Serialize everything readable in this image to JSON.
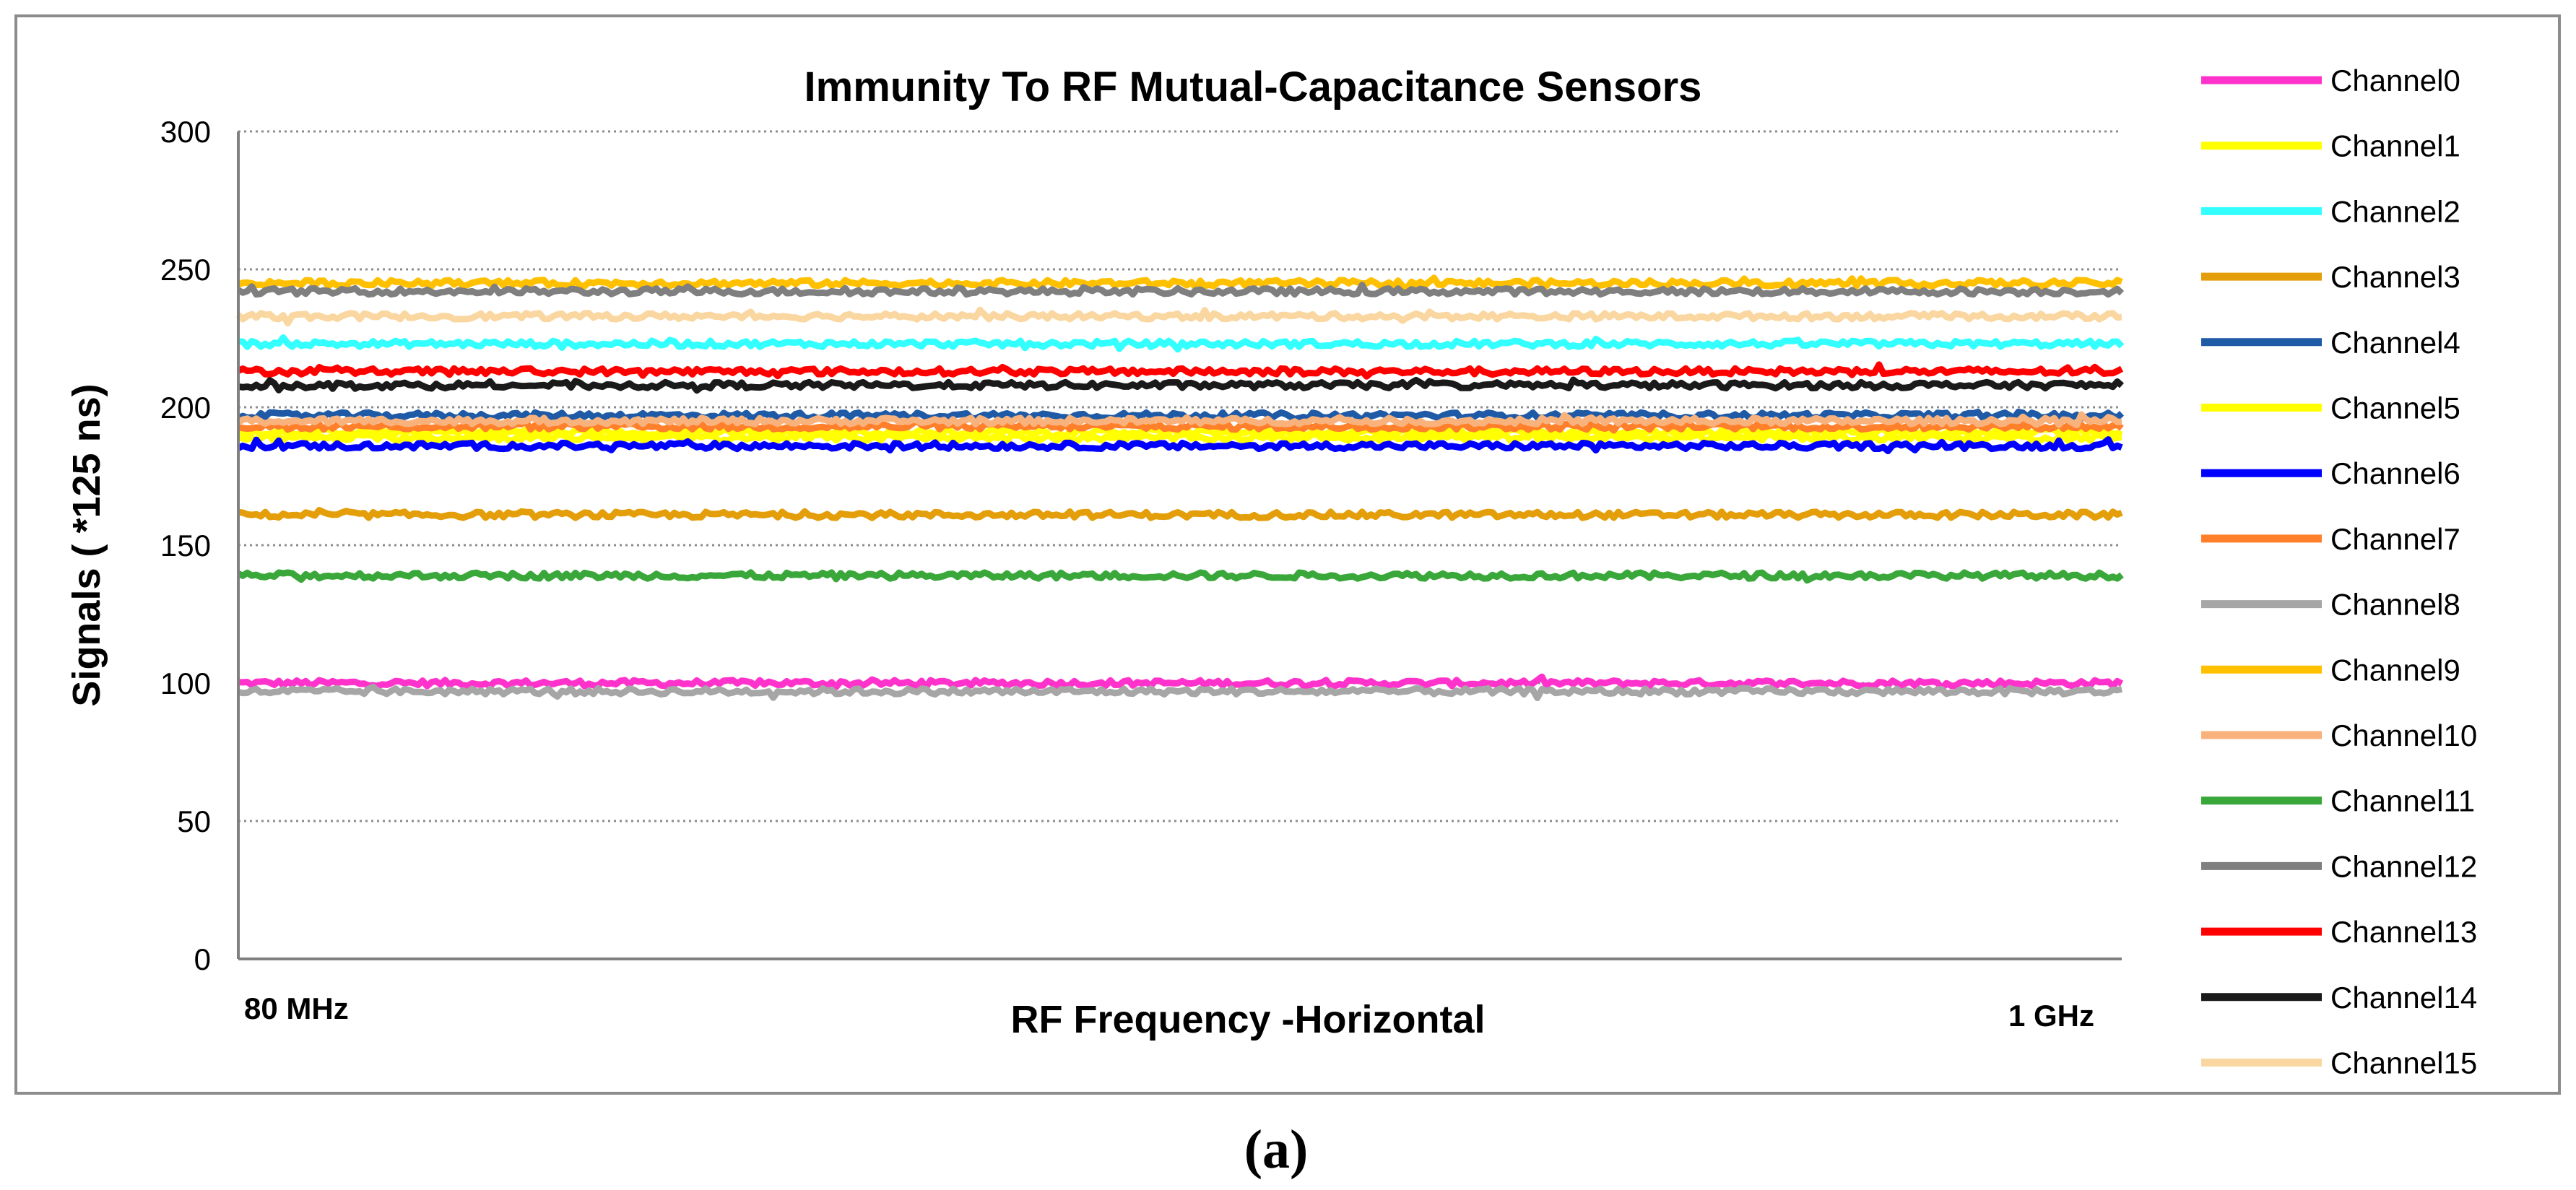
{
  "chart_data": {
    "type": "line",
    "title": "Immunity To RF Mutual-Capacitance Sensors",
    "xlabel": "RF Frequency -Horizontal",
    "ylabel": "Signals ( *125 ns)",
    "x_start_label": "80 MHz",
    "x_end_label": "1 GHz",
    "ylim": [
      0,
      300
    ],
    "yticks": [
      "0",
      "50",
      "100",
      "150",
      "200",
      "250",
      "300"
    ],
    "grid": true,
    "legend_position": "right",
    "caption": "(a)",
    "series": [
      {
        "name": "Channel0",
        "color": "#ff33cc",
        "value": 100
      },
      {
        "name": "Channel1",
        "color": "#ffff00",
        "value": 191
      },
      {
        "name": "Channel2",
        "color": "#33ffff",
        "value": 223
      },
      {
        "name": "Channel3",
        "color": "#e39e09",
        "value": 161
      },
      {
        "name": "Channel4",
        "color": "#1f5aa6",
        "value": 197
      },
      {
        "name": "Channel5",
        "color": "#ffff00",
        "value": 189
      },
      {
        "name": "Channel6",
        "color": "#0000ff",
        "value": 186
      },
      {
        "name": "Channel7",
        "color": "#ff7f2a",
        "value": 193
      },
      {
        "name": "Channel8",
        "color": "#a6a6a6",
        "value": 97
      },
      {
        "name": "Channel9",
        "color": "#ffc000",
        "value": 245
      },
      {
        "name": "Channel10",
        "color": "#f9b27c",
        "value": 195
      },
      {
        "name": "Channel11",
        "color": "#3aa73a",
        "value": 139
      },
      {
        "name": "Channel12",
        "color": "#7f7f7f",
        "value": 242
      },
      {
        "name": "Channel13",
        "color": "#ff0000",
        "value": 213
      },
      {
        "name": "Channel14",
        "color": "#1a1a1a",
        "value": 208
      },
      {
        "name": "Channel15",
        "color": "#fad7a0",
        "value": 233
      }
    ]
  }
}
